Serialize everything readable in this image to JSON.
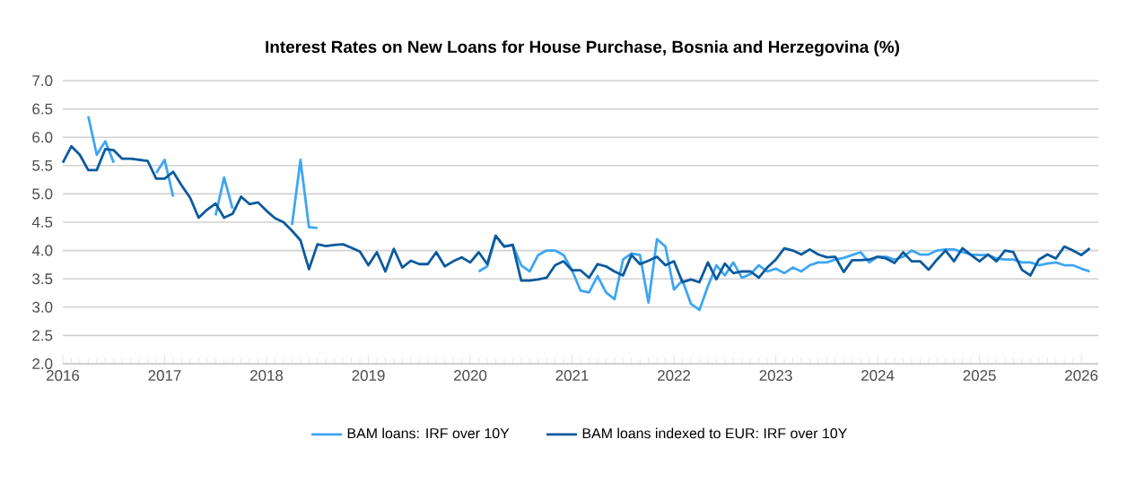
{
  "chart_data": {
    "type": "line",
    "title": "Interest Rates on New Loans for House Purchase, Bosnia and Herzegovina (%)",
    "x": [
      "2016-01",
      "2016-02",
      "2016-03",
      "2016-04",
      "2016-05",
      "2016-06",
      "2016-07",
      "2016-08",
      "2016-09",
      "2016-10",
      "2016-11",
      "2016-12",
      "2017-01",
      "2017-02",
      "2017-03",
      "2017-04",
      "2017-05",
      "2017-06",
      "2017-07",
      "2017-08",
      "2017-09",
      "2017-10",
      "2017-11",
      "2017-12",
      "2018-01",
      "2018-02",
      "2018-03",
      "2018-04",
      "2018-05",
      "2018-06",
      "2018-07",
      "2018-08",
      "2018-09",
      "2018-10",
      "2018-11",
      "2018-12",
      "2019-01",
      "2019-02",
      "2019-03",
      "2019-04",
      "2019-05",
      "2019-06",
      "2019-07",
      "2019-08",
      "2019-09",
      "2019-10",
      "2019-11",
      "2019-12",
      "2020-01",
      "2020-02",
      "2020-03",
      "2020-04",
      "2020-05",
      "2020-06",
      "2020-07",
      "2020-08",
      "2020-09",
      "2020-10",
      "2020-11",
      "2020-12",
      "2021-01",
      "2021-02",
      "2021-03",
      "2021-04",
      "2021-05",
      "2021-06",
      "2021-07",
      "2021-08",
      "2021-09",
      "2021-10",
      "2021-11",
      "2021-12",
      "2022-01",
      "2022-02",
      "2022-03",
      "2022-04",
      "2022-05",
      "2022-06",
      "2022-07",
      "2022-08",
      "2022-09",
      "2022-10",
      "2022-11",
      "2022-12",
      "2023-01",
      "2023-02",
      "2023-03",
      "2023-04",
      "2023-05",
      "2023-06",
      "2023-07",
      "2023-08",
      "2023-09",
      "2023-10",
      "2023-11",
      "2023-12",
      "2024-01",
      "2024-02",
      "2024-03",
      "2024-04",
      "2024-05",
      "2024-06",
      "2024-07",
      "2024-08",
      "2024-09",
      "2024-10",
      "2024-11",
      "2024-12",
      "2025-01",
      "2025-02",
      "2025-03",
      "2025-04",
      "2025-05",
      "2025-06",
      "2025-07",
      "2025-08",
      "2025-09",
      "2025-10",
      "2025-11",
      "2025-12",
      "2026-01",
      "2026-02"
    ],
    "series": [
      {
        "name": "BAM loans: IRF over 10Y",
        "color": "#3ea6f2",
        "values": [
          null,
          null,
          null,
          6.37,
          5.69,
          5.93,
          5.55,
          null,
          null,
          null,
          null,
          5.37,
          5.6,
          4.95,
          null,
          null,
          null,
          null,
          4.62,
          5.29,
          4.74,
          null,
          null,
          null,
          null,
          null,
          null,
          4.45,
          5.6,
          4.41,
          4.4,
          null,
          null,
          null,
          null,
          null,
          null,
          null,
          null,
          null,
          null,
          null,
          null,
          null,
          null,
          null,
          null,
          null,
          null,
          3.63,
          3.72,
          4.26,
          4.07,
          4.1,
          3.74,
          3.63,
          3.92,
          4.0,
          4.0,
          3.92,
          3.65,
          3.29,
          3.26,
          3.55,
          3.26,
          3.14,
          3.84,
          3.95,
          3.92,
          3.08,
          4.2,
          4.07,
          3.31,
          3.47,
          3.06,
          2.95,
          3.37,
          3.74,
          3.56,
          3.79,
          3.52,
          3.58,
          3.74,
          3.63,
          3.68,
          3.6,
          3.7,
          3.63,
          3.74,
          3.79,
          3.79,
          3.84,
          3.87,
          3.92,
          3.97,
          3.79,
          3.89,
          3.89,
          3.84,
          3.89,
          4.0,
          3.93,
          3.93,
          4.0,
          4.02,
          4.02,
          3.97,
          3.93,
          3.92,
          3.92,
          3.86,
          3.84,
          3.84,
          3.79,
          3.79,
          3.74,
          3.77,
          3.79,
          3.74,
          3.74,
          3.68,
          3.63
        ]
      },
      {
        "name": "BAM loans indexed to EUR: IRF over 10Y",
        "color": "#0b5a9e",
        "values": [
          5.55,
          5.84,
          5.69,
          5.42,
          5.42,
          5.79,
          5.77,
          5.62,
          5.62,
          5.6,
          5.58,
          5.27,
          5.27,
          5.39,
          5.15,
          4.93,
          4.58,
          4.72,
          4.83,
          4.58,
          4.65,
          4.95,
          4.82,
          4.85,
          4.7,
          4.57,
          4.5,
          4.35,
          4.18,
          3.67,
          4.11,
          4.08,
          4.1,
          4.11,
          4.05,
          3.98,
          3.74,
          3.97,
          3.63,
          4.03,
          3.7,
          3.82,
          3.76,
          3.76,
          3.97,
          3.72,
          3.81,
          3.88,
          3.79,
          3.97,
          3.76,
          4.26,
          4.07,
          4.1,
          3.47,
          3.47,
          3.49,
          3.52,
          3.74,
          3.81,
          3.65,
          3.65,
          3.52,
          3.76,
          3.72,
          3.63,
          3.56,
          3.92,
          3.76,
          3.82,
          3.89,
          3.74,
          3.81,
          3.44,
          3.49,
          3.44,
          3.79,
          3.49,
          3.77,
          3.6,
          3.63,
          3.63,
          3.52,
          3.7,
          3.84,
          4.04,
          4.0,
          3.93,
          4.02,
          3.93,
          3.88,
          3.89,
          3.62,
          3.83,
          3.83,
          3.84,
          3.89,
          3.86,
          3.78,
          3.97,
          3.81,
          3.81,
          3.66,
          3.84,
          4.0,
          3.81,
          4.04,
          3.92,
          3.81,
          3.93,
          3.81,
          4.0,
          3.97,
          3.66,
          3.56,
          3.84,
          3.93,
          3.86,
          4.07,
          4.0,
          3.92,
          4.04
        ]
      }
    ],
    "xlim": [
      "2016",
      "2026-03"
    ],
    "xticks": [
      "2016",
      "2017",
      "2018",
      "2019",
      "2020",
      "2021",
      "2022",
      "2023",
      "2024",
      "2025",
      "2026"
    ],
    "ylim": [
      2.0,
      7.0
    ],
    "yticks": [
      {
        "value": 2.0,
        "label": "2.0"
      },
      {
        "value": 2.5,
        "label": "2.5"
      },
      {
        "value": 3.0,
        "label": "3.0"
      },
      {
        "value": 3.5,
        "label": "3.5"
      },
      {
        "value": 4.0,
        "label": "4.0"
      },
      {
        "value": 4.5,
        "label": "4.5"
      },
      {
        "value": 5.0,
        "label": "5.0"
      },
      {
        "value": 5.5,
        "label": "5.5"
      },
      {
        "value": 6.0,
        "label": "6.0"
      },
      {
        "value": 6.5,
        "label": "6.5"
      },
      {
        "value": 7.0,
        "label": "7.0"
      }
    ],
    "grid": "y",
    "legend": "bottom",
    "marker": "none",
    "line_style": "solid"
  }
}
